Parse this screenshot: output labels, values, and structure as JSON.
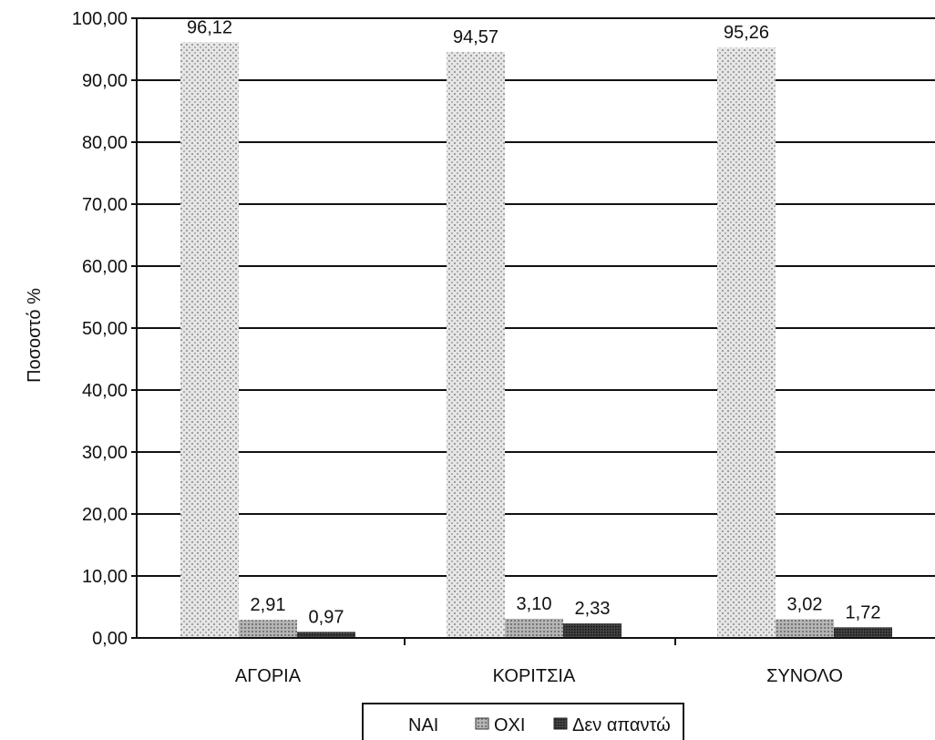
{
  "chart_data": {
    "type": "bar",
    "title": "",
    "xlabel": "",
    "ylabel": "Ποσοστό %",
    "ylim": [
      0,
      100
    ],
    "yticks": [
      "0,00",
      "10,00",
      "20,00",
      "30,00",
      "40,00",
      "50,00",
      "60,00",
      "70,00",
      "80,00",
      "90,00",
      "100,00"
    ],
    "grid": true,
    "legend_position": "bottom",
    "categories": [
      "ΑΓΟΡΙΑ",
      "ΚΟΡΙΤΣΙΑ",
      "ΣΥΝΟΛΟ"
    ],
    "series": [
      {
        "name": "ΝΑΙ",
        "values": [
          96.12,
          94.57,
          95.26
        ],
        "labels": [
          "96,12",
          "94,57",
          "95,26"
        ],
        "color": "#c8c8c8"
      },
      {
        "name": "ΟΧΙ",
        "values": [
          2.91,
          3.1,
          3.02
        ],
        "labels": [
          "2,91",
          "3,10",
          "3,02"
        ],
        "color": "#9a9a9a"
      },
      {
        "name": "Δεν απαντώ",
        "values": [
          0.97,
          2.33,
          1.72
        ],
        "labels": [
          "0,97",
          "2,33",
          "1,72"
        ],
        "color": "#3a3a3a"
      }
    ]
  }
}
